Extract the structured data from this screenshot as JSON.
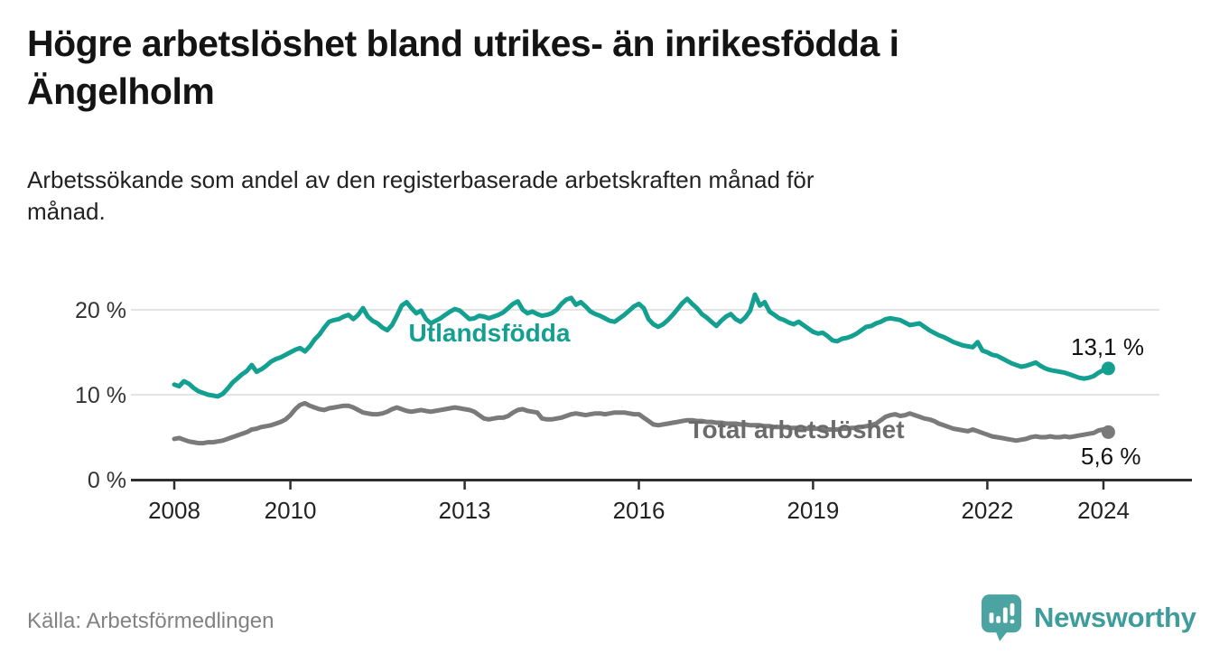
{
  "header": {
    "title_lines": [
      "Högre arbetslöshet bland utrikes- än inrikesfödda i",
      "Ängelholm"
    ],
    "subtitle_lines": [
      "Arbetssökande som andel av den registerbaserade arbetskraften månad för",
      "månad."
    ]
  },
  "footer": {
    "source": "Källa: Arbetsförmedlingen",
    "brand": "Newsworthy"
  },
  "colors": {
    "accent_teal": "#14a090",
    "line_gray": "#7a7a7a",
    "label_gray": "#6b6b6b",
    "logo_teal": "#4ba4a1",
    "text_dark": "#141414",
    "gridline": "#dcdcdc"
  },
  "chart_data": {
    "type": "line",
    "title": "Högre arbetslöshet bland utrikes- än inrikesfödda i Ängelholm",
    "subtitle": "Arbetssökande som andel av den registerbaserade arbetskraften månad för månad.",
    "x_start_year": 2008,
    "x_interval": "monthly",
    "x_end_year": 2024.08,
    "x_tick_labels": [
      "2008",
      "2010",
      "2013",
      "2016",
      "2019",
      "2022",
      "2024"
    ],
    "x_tick_years": [
      2008,
      2010,
      2013,
      2016,
      2019,
      2022,
      2024
    ],
    "y_tick_labels": [
      "20 %",
      "10 %",
      "0 %"
    ],
    "y_tick_values": [
      20,
      10,
      0
    ],
    "ylim": [
      0,
      23
    ],
    "grid": "horizontal",
    "legend_position": "inline-labels",
    "series": [
      {
        "name": "Utlandsfödda",
        "color": "#14a090",
        "end_label": "13,1 %",
        "end_value": 13.1,
        "values": [
          11.2,
          11.0,
          11.6,
          11.3,
          10.8,
          10.4,
          10.2,
          10.0,
          9.9,
          9.8,
          10.1,
          10.7,
          11.4,
          11.9,
          12.4,
          12.8,
          13.5,
          12.7,
          13.0,
          13.4,
          13.9,
          14.2,
          14.4,
          14.7,
          15.0,
          15.3,
          15.5,
          15.1,
          15.7,
          16.5,
          17.1,
          17.9,
          18.6,
          18.8,
          18.9,
          19.2,
          19.4,
          18.9,
          19.4,
          20.2,
          19.2,
          18.7,
          18.4,
          17.9,
          17.6,
          18.2,
          19.3,
          20.5,
          20.9,
          20.2,
          19.6,
          19.9,
          18.9,
          18.4,
          18.7,
          19.0,
          19.4,
          19.8,
          20.1,
          19.9,
          19.4,
          18.9,
          19.0,
          19.3,
          19.2,
          19.0,
          19.2,
          19.4,
          19.7,
          20.2,
          20.7,
          21.0,
          20.0,
          19.6,
          19.8,
          19.5,
          19.3,
          19.4,
          19.6,
          20.0,
          20.7,
          21.2,
          21.4,
          20.6,
          20.9,
          20.4,
          19.8,
          19.5,
          19.3,
          19.0,
          18.7,
          18.6,
          19.0,
          19.4,
          19.9,
          20.4,
          20.7,
          20.2,
          18.9,
          18.3,
          18.0,
          18.3,
          18.8,
          19.4,
          20.1,
          20.8,
          21.3,
          20.7,
          20.2,
          19.5,
          19.1,
          18.6,
          18.1,
          18.7,
          19.2,
          19.5,
          18.9,
          18.6,
          19.1,
          19.9,
          21.8,
          20.5,
          20.9,
          19.8,
          19.4,
          19.0,
          18.8,
          18.5,
          18.3,
          18.6,
          18.2,
          17.8,
          17.4,
          17.2,
          17.3,
          16.9,
          16.4,
          16.3,
          16.6,
          16.7,
          16.9,
          17.2,
          17.6,
          18.0,
          18.1,
          18.4,
          18.6,
          18.9,
          19.0,
          18.9,
          18.8,
          18.5,
          18.2,
          18.3,
          18.4,
          18.0,
          17.6,
          17.3,
          17.0,
          16.8,
          16.5,
          16.2,
          16.0,
          15.8,
          15.7,
          15.6,
          16.2,
          15.2,
          15.0,
          14.7,
          14.6,
          14.3,
          14.0,
          13.7,
          13.5,
          13.3,
          13.4,
          13.6,
          13.8,
          13.4,
          13.1,
          12.9,
          12.8,
          12.7,
          12.6,
          12.4,
          12.2,
          12.0,
          11.9,
          12.0,
          12.2,
          12.6,
          12.9,
          13.1
        ]
      },
      {
        "name": "Total arbetslöshet",
        "color": "#7a7a7a",
        "end_label": "5,6 %",
        "end_value": 5.6,
        "values": [
          4.8,
          4.9,
          4.7,
          4.5,
          4.4,
          4.3,
          4.3,
          4.4,
          4.4,
          4.5,
          4.6,
          4.8,
          5.0,
          5.2,
          5.4,
          5.6,
          5.9,
          6.0,
          6.2,
          6.3,
          6.4,
          6.6,
          6.8,
          7.1,
          7.6,
          8.3,
          8.8,
          9.0,
          8.7,
          8.5,
          8.3,
          8.2,
          8.4,
          8.5,
          8.6,
          8.7,
          8.7,
          8.5,
          8.2,
          7.9,
          7.8,
          7.7,
          7.7,
          7.8,
          8.0,
          8.3,
          8.5,
          8.3,
          8.1,
          8.0,
          8.1,
          8.2,
          8.1,
          8.0,
          8.1,
          8.2,
          8.3,
          8.4,
          8.5,
          8.4,
          8.3,
          8.2,
          8.0,
          7.6,
          7.2,
          7.1,
          7.2,
          7.3,
          7.3,
          7.5,
          7.9,
          8.2,
          8.3,
          8.1,
          8.0,
          7.9,
          7.2,
          7.1,
          7.1,
          7.2,
          7.3,
          7.5,
          7.7,
          7.8,
          7.7,
          7.6,
          7.7,
          7.8,
          7.8,
          7.7,
          7.8,
          7.9,
          7.9,
          7.9,
          7.8,
          7.7,
          7.7,
          7.3,
          6.9,
          6.5,
          6.4,
          6.5,
          6.6,
          6.7,
          6.8,
          6.9,
          7.0,
          7.0,
          6.9,
          6.9,
          6.8,
          6.8,
          6.7,
          6.7,
          6.6,
          6.6,
          6.6,
          6.5,
          6.5,
          6.4,
          6.4,
          6.4,
          6.3,
          6.3,
          6.2,
          6.2,
          6.2,
          6.1,
          6.1,
          6.1,
          6.1,
          6.0,
          6.0,
          6.0,
          6.0,
          5.9,
          5.9,
          5.9,
          6.0,
          6.0,
          6.1,
          6.1,
          6.2,
          6.3,
          6.4,
          6.6,
          7.0,
          7.4,
          7.6,
          7.7,
          7.5,
          7.6,
          7.8,
          7.6,
          7.4,
          7.2,
          7.1,
          6.9,
          6.6,
          6.4,
          6.2,
          6.0,
          5.9,
          5.8,
          5.7,
          5.9,
          5.7,
          5.5,
          5.3,
          5.1,
          5.0,
          4.9,
          4.8,
          4.7,
          4.6,
          4.7,
          4.8,
          5.0,
          5.1,
          5.0,
          5.0,
          5.1,
          5.0,
          5.0,
          5.1,
          5.0,
          5.1,
          5.2,
          5.3,
          5.4,
          5.5,
          5.8,
          5.9,
          5.6
        ]
      }
    ],
    "source": "Källa: Arbetsförmedlingen"
  }
}
